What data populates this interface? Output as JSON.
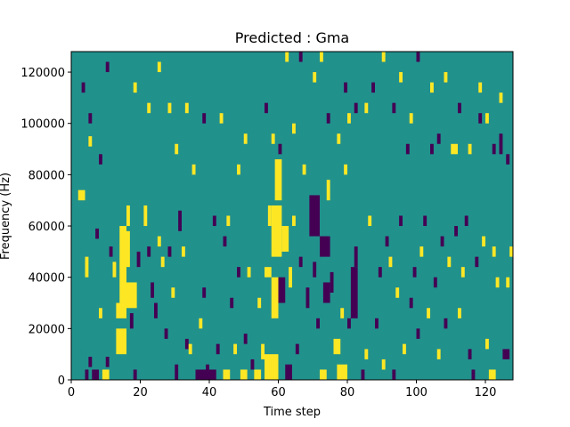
{
  "chart_data": {
    "type": "heatmap",
    "title": "Predicted : Gma",
    "xlabel": "Time step",
    "ylabel": "Frequency (Hz)",
    "xlim": [
      0,
      128
    ],
    "ylim": [
      0,
      128000
    ],
    "x_ticks": [
      0,
      20,
      40,
      60,
      80,
      100,
      120
    ],
    "y_ticks": [
      0,
      20000,
      40000,
      60000,
      80000,
      100000,
      120000
    ],
    "x_tick_labels": [
      "0",
      "20",
      "40",
      "60",
      "80",
      "100",
      "120"
    ],
    "y_tick_labels": [
      "0",
      "20000",
      "40000",
      "60000",
      "80000",
      "100000",
      "120000"
    ],
    "grid": false,
    "legend": "none",
    "n_time_steps": 128,
    "n_freq_bins": 128,
    "bin_height_hz": 1000,
    "background_value": 0,
    "colors": {
      "-1": "#440154",
      "0": "#21918c",
      "1": "#fde725"
    },
    "cells_note": "[time_step, frequency_hz_start, duration_steps, height_hz, value]",
    "cells": [
      [
        2,
        70000,
        2,
        4000,
        1
      ],
      [
        3,
        10000,
        1,
        3000,
        0
      ],
      [
        4,
        0,
        1,
        4000,
        -1
      ],
      [
        4,
        40000,
        1,
        8000,
        1
      ],
      [
        5,
        5000,
        1,
        4000,
        -1
      ],
      [
        5,
        91000,
        1,
        4000,
        1
      ],
      [
        6,
        0,
        2,
        4000,
        -1
      ],
      [
        7,
        55000,
        1,
        4000,
        -1
      ],
      [
        8,
        24000,
        1,
        4000,
        1
      ],
      [
        9,
        0,
        2,
        4000,
        1
      ],
      [
        10,
        5000,
        1,
        4000,
        -1
      ],
      [
        11,
        48000,
        1,
        4000,
        -1
      ],
      [
        12,
        40000,
        1,
        6000,
        1
      ],
      [
        13,
        10000,
        3,
        10000,
        1
      ],
      [
        13,
        24000,
        3,
        6000,
        1
      ],
      [
        14,
        30000,
        2,
        30000,
        1
      ],
      [
        15,
        44000,
        2,
        14000,
        1
      ],
      [
        16,
        28000,
        3,
        10000,
        1
      ],
      [
        16,
        60000,
        1,
        8000,
        1
      ],
      [
        17,
        20000,
        1,
        6000,
        -1
      ],
      [
        18,
        0,
        1,
        4000,
        -1
      ],
      [
        19,
        44000,
        1,
        6000,
        -1
      ],
      [
        21,
        60000,
        1,
        8000,
        1
      ],
      [
        22,
        48000,
        1,
        4000,
        -1
      ],
      [
        23,
        32000,
        1,
        6000,
        -1
      ],
      [
        24,
        24000,
        1,
        6000,
        -1
      ],
      [
        25,
        52000,
        1,
        4000,
        1
      ],
      [
        26,
        44000,
        1,
        4000,
        1
      ],
      [
        27,
        16000,
        1,
        4000,
        -1
      ],
      [
        28,
        48000,
        1,
        4000,
        -1
      ],
      [
        29,
        32000,
        1,
        4000,
        1
      ],
      [
        30,
        0,
        1,
        6000,
        -1
      ],
      [
        31,
        58000,
        1,
        8000,
        -1
      ],
      [
        32,
        48000,
        1,
        4000,
        1
      ],
      [
        33,
        12000,
        1,
        4000,
        -1
      ],
      [
        34,
        10000,
        1,
        4000,
        1
      ],
      [
        35,
        80000,
        1,
        4000,
        1
      ],
      [
        36,
        0,
        4,
        4000,
        -1
      ],
      [
        37,
        20000,
        1,
        4000,
        1
      ],
      [
        38,
        32000,
        1,
        4000,
        -1
      ],
      [
        39,
        2000,
        1,
        4000,
        -1
      ],
      [
        40,
        0,
        2,
        4000,
        -1
      ],
      [
        41,
        60000,
        1,
        4000,
        -1
      ],
      [
        42,
        10000,
        1,
        4000,
        -1
      ],
      [
        44,
        0,
        2,
        4000,
        1
      ],
      [
        44,
        52000,
        1,
        4000,
        -1
      ],
      [
        45,
        60000,
        1,
        4000,
        1
      ],
      [
        46,
        28000,
        1,
        4000,
        -1
      ],
      [
        47,
        10000,
        1,
        4000,
        1
      ],
      [
        48,
        40000,
        1,
        4000,
        -1
      ],
      [
        49,
        0,
        2,
        4000,
        1
      ],
      [
        50,
        14000,
        1,
        4000,
        -1
      ],
      [
        51,
        40000,
        1,
        4000,
        1
      ],
      [
        52,
        4000,
        1,
        4000,
        -1
      ],
      [
        53,
        0,
        2,
        4000,
        1
      ],
      [
        54,
        28000,
        1,
        4000,
        1
      ],
      [
        55,
        8000,
        1,
        6000,
        1
      ],
      [
        56,
        0,
        4,
        10000,
        1
      ],
      [
        56,
        40000,
        2,
        4000,
        1
      ],
      [
        57,
        60000,
        1,
        8000,
        1
      ],
      [
        58,
        48000,
        3,
        20000,
        1
      ],
      [
        58,
        24000,
        2,
        16000,
        1
      ],
      [
        59,
        70000,
        2,
        16000,
        1
      ],
      [
        60,
        30000,
        2,
        10000,
        -1
      ],
      [
        61,
        50000,
        2,
        10000,
        1
      ],
      [
        62,
        0,
        2,
        6000,
        -1
      ],
      [
        63,
        36000,
        1,
        8000,
        1
      ],
      [
        64,
        60000,
        1,
        4000,
        1
      ],
      [
        65,
        10000,
        1,
        4000,
        -1
      ],
      [
        66,
        44000,
        1,
        4000,
        -1
      ],
      [
        67,
        80000,
        1,
        4000,
        1
      ],
      [
        68,
        28000,
        1,
        8000,
        -1
      ],
      [
        69,
        56000,
        3,
        16000,
        -1
      ],
      [
        70,
        40000,
        1,
        6000,
        -1
      ],
      [
        71,
        20000,
        1,
        4000,
        -1
      ],
      [
        72,
        0,
        2,
        4000,
        1
      ],
      [
        72,
        48000,
        3,
        8000,
        -1
      ],
      [
        73,
        30000,
        2,
        8000,
        -1
      ],
      [
        74,
        70000,
        1,
        8000,
        1
      ],
      [
        75,
        34000,
        1,
        8000,
        -1
      ],
      [
        76,
        10000,
        2,
        6000,
        1
      ],
      [
        77,
        0,
        3,
        6000,
        1
      ],
      [
        78,
        24000,
        1,
        4000,
        1
      ],
      [
        79,
        80000,
        1,
        4000,
        1
      ],
      [
        80,
        20000,
        1,
        4000,
        -1
      ],
      [
        81,
        24000,
        2,
        20000,
        -1
      ],
      [
        82,
        44000,
        1,
        8000,
        -1
      ],
      [
        84,
        0,
        1,
        4000,
        -1
      ],
      [
        85,
        8000,
        1,
        4000,
        1
      ],
      [
        86,
        60000,
        1,
        4000,
        1
      ],
      [
        88,
        20000,
        1,
        4000,
        -1
      ],
      [
        89,
        40000,
        1,
        4000,
        -1
      ],
      [
        90,
        4000,
        1,
        4000,
        1
      ],
      [
        91,
        52000,
        1,
        4000,
        -1
      ],
      [
        92,
        44000,
        1,
        4000,
        1
      ],
      [
        93,
        0,
        1,
        4000,
        -1
      ],
      [
        94,
        32000,
        1,
        4000,
        1
      ],
      [
        95,
        60000,
        1,
        4000,
        -1
      ],
      [
        96,
        10000,
        1,
        4000,
        1
      ],
      [
        97,
        88000,
        1,
        4000,
        -1
      ],
      [
        98,
        28000,
        1,
        4000,
        -1
      ],
      [
        99,
        40000,
        1,
        4000,
        -1
      ],
      [
        100,
        16000,
        1,
        4000,
        -1
      ],
      [
        101,
        48000,
        1,
        4000,
        1
      ],
      [
        102,
        60000,
        1,
        4000,
        -1
      ],
      [
        103,
        24000,
        1,
        4000,
        1
      ],
      [
        104,
        88000,
        1,
        4000,
        -1
      ],
      [
        105,
        36000,
        1,
        4000,
        -1
      ],
      [
        106,
        8000,
        1,
        4000,
        1
      ],
      [
        107,
        52000,
        1,
        4000,
        -1
      ],
      [
        108,
        20000,
        1,
        4000,
        -1
      ],
      [
        109,
        44000,
        1,
        4000,
        1
      ],
      [
        110,
        88000,
        2,
        4000,
        1
      ],
      [
        111,
        56000,
        1,
        4000,
        -1
      ],
      [
        112,
        24000,
        1,
        4000,
        1
      ],
      [
        113,
        40000,
        1,
        4000,
        1
      ],
      [
        114,
        60000,
        1,
        4000,
        -1
      ],
      [
        115,
        8000,
        1,
        4000,
        -1
      ],
      [
        116,
        0,
        1,
        4000,
        -1
      ],
      [
        117,
        44000,
        1,
        4000,
        -1
      ],
      [
        118,
        100000,
        1,
        4000,
        -1
      ],
      [
        119,
        52000,
        1,
        4000,
        1
      ],
      [
        120,
        12000,
        1,
        4000,
        1
      ],
      [
        121,
        0,
        2,
        4000,
        1
      ],
      [
        122,
        48000,
        1,
        4000,
        1
      ],
      [
        123,
        36000,
        1,
        4000,
        1
      ],
      [
        124,
        88000,
        1,
        8000,
        -1
      ],
      [
        125,
        8000,
        2,
        4000,
        -1
      ],
      [
        126,
        36000,
        1,
        4000,
        1
      ],
      [
        127,
        48000,
        1,
        4000,
        1
      ],
      [
        3,
        112000,
        1,
        4000,
        -1
      ],
      [
        5,
        100000,
        1,
        4000,
        -1
      ],
      [
        8,
        84000,
        1,
        4000,
        -1
      ],
      [
        10,
        120000,
        1,
        4000,
        -1
      ],
      [
        18,
        112000,
        1,
        4000,
        1
      ],
      [
        22,
        104000,
        1,
        4000,
        1
      ],
      [
        25,
        120000,
        1,
        4000,
        1
      ],
      [
        28,
        104000,
        1,
        4000,
        1
      ],
      [
        30,
        88000,
        1,
        4000,
        1
      ],
      [
        33,
        104000,
        1,
        4000,
        1
      ],
      [
        38,
        100000,
        1,
        4000,
        -1
      ],
      [
        43,
        100000,
        1,
        4000,
        1
      ],
      [
        48,
        80000,
        1,
        4000,
        1
      ],
      [
        50,
        92000,
        1,
        4000,
        1
      ],
      [
        56,
        104000,
        1,
        4000,
        -1
      ],
      [
        58,
        92000,
        1,
        4000,
        1
      ],
      [
        60,
        88000,
        1,
        4000,
        -1
      ],
      [
        62,
        124000,
        1,
        4000,
        1
      ],
      [
        64,
        96000,
        1,
        4000,
        1
      ],
      [
        66,
        124000,
        1,
        4000,
        -1
      ],
      [
        70,
        116000,
        1,
        4000,
        1
      ],
      [
        72,
        124000,
        1,
        4000,
        1
      ],
      [
        74,
        100000,
        1,
        4000,
        -1
      ],
      [
        77,
        92000,
        1,
        4000,
        1
      ],
      [
        79,
        112000,
        1,
        4000,
        -1
      ],
      [
        80,
        100000,
        1,
        4000,
        1
      ],
      [
        82,
        104000,
        1,
        4000,
        -1
      ],
      [
        85,
        104000,
        1,
        4000,
        1
      ],
      [
        87,
        112000,
        1,
        4000,
        -1
      ],
      [
        90,
        124000,
        1,
        4000,
        1
      ],
      [
        93,
        104000,
        1,
        4000,
        -1
      ],
      [
        95,
        116000,
        1,
        4000,
        1
      ],
      [
        98,
        100000,
        1,
        4000,
        1
      ],
      [
        100,
        124000,
        1,
        4000,
        -1
      ],
      [
        104,
        112000,
        1,
        4000,
        1
      ],
      [
        106,
        92000,
        1,
        4000,
        -1
      ],
      [
        108,
        116000,
        1,
        4000,
        1
      ],
      [
        112,
        104000,
        1,
        4000,
        -1
      ],
      [
        115,
        88000,
        1,
        4000,
        1
      ],
      [
        118,
        112000,
        1,
        4000,
        1
      ],
      [
        120,
        100000,
        1,
        4000,
        1
      ],
      [
        122,
        88000,
        1,
        4000,
        -1
      ],
      [
        124,
        108000,
        1,
        4000,
        1
      ],
      [
        126,
        84000,
        1,
        4000,
        -1
      ]
    ]
  }
}
